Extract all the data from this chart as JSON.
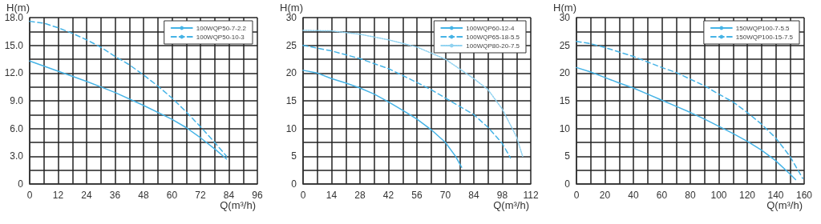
{
  "chart_data": [
    {
      "type": "line",
      "xlabel": "Q(m³/h)",
      "ylabel": "H(m)",
      "xlim": [
        0,
        96
      ],
      "ylim": [
        0,
        18
      ],
      "xticks": [
        0,
        {
          "value": 6,
          "label": null
        },
        12,
        {
          "value": 18,
          "label": null
        },
        24,
        {
          "value": 30,
          "label": null
        },
        36,
        {
          "value": 42,
          "label": null
        },
        48,
        {
          "value": 54,
          "label": null
        },
        60,
        {
          "value": 66,
          "label": null
        },
        72,
        {
          "value": 78,
          "label": null
        },
        84,
        {
          "value": 90,
          "label": null
        },
        96
      ],
      "yticks": [
        0,
        {
          "value": 1.5,
          "label": null
        },
        {
          "value": 3,
          "label": "3.0"
        },
        {
          "value": 4.5,
          "label": null
        },
        {
          "value": 6,
          "label": "6.0"
        },
        {
          "value": 7.5,
          "label": null
        },
        {
          "value": 9,
          "label": "9.0"
        },
        {
          "value": 10.5,
          "label": null
        },
        {
          "value": 12,
          "label": "12.0"
        },
        {
          "value": 13.5,
          "label": null
        },
        {
          "value": 15,
          "label": "15.0"
        },
        {
          "value": 16.5,
          "label": null
        },
        {
          "value": 18,
          "label": "18.0"
        }
      ],
      "grid": true,
      "legend": "top right",
      "marker": "none",
      "series": [
        {
          "name": "100WQP50-7-2.2",
          "color": "#45b3e6",
          "line_style": "solid",
          "x": [
            0,
            12,
            24,
            30,
            36,
            48,
            60,
            66,
            72,
            78,
            83
          ],
          "values": [
            13.3,
            12.2,
            11.1,
            10.5,
            9.9,
            8.5,
            7.0,
            6.1,
            5.0,
            3.8,
            2.7
          ]
        },
        {
          "name": "100WQP50-10-3",
          "color": "#45b3e6",
          "line_style": "dashed",
          "x": [
            0,
            6,
            12,
            18,
            24,
            30,
            36,
            42,
            48,
            54,
            60,
            66,
            72,
            78,
            83
          ],
          "values": [
            17.6,
            17.4,
            16.9,
            16.3,
            15.6,
            14.8,
            13.8,
            12.9,
            11.8,
            10.6,
            9.3,
            7.8,
            6.2,
            4.5,
            3.0
          ]
        }
      ]
    },
    {
      "type": "line",
      "xlabel": "Q(m³/h)",
      "ylabel": "H(m)",
      "xlim": [
        0,
        112
      ],
      "ylim": [
        0,
        30
      ],
      "xticks": [
        0,
        {
          "value": 7,
          "label": null
        },
        14,
        {
          "value": 21,
          "label": null
        },
        28,
        {
          "value": 35,
          "label": null
        },
        42,
        {
          "value": 49,
          "label": null
        },
        56,
        {
          "value": 63,
          "label": null
        },
        70,
        {
          "value": 77,
          "label": null
        },
        84,
        {
          "value": 91,
          "label": null
        },
        98,
        {
          "value": 105,
          "label": null
        },
        112
      ],
      "yticks": [
        0,
        {
          "value": 2.5,
          "label": null
        },
        5,
        {
          "value": 7.5,
          "label": null
        },
        10,
        {
          "value": 12.5,
          "label": null
        },
        15,
        {
          "value": 17.5,
          "label": null
        },
        20,
        {
          "value": 22.5,
          "label": null
        },
        25,
        {
          "value": 27.5,
          "label": null
        },
        30
      ],
      "grid": true,
      "legend": "top right",
      "marker": "none",
      "series": [
        {
          "name": "100WQP60-12-4",
          "color": "#45b3e6",
          "line_style": "solid",
          "x": [
            0,
            7,
            14,
            21,
            28,
            35,
            42,
            49,
            56,
            63,
            70,
            75,
            78
          ],
          "values": [
            20.5,
            20,
            19,
            18.2,
            17.3,
            16.2,
            14.8,
            13.3,
            11.7,
            9.8,
            7.5,
            5,
            3
          ]
        },
        {
          "name": "100WQP65-18-5.5",
          "color": "#45b3e6",
          "line_style": "dashed",
          "x": [
            0,
            14,
            28,
            42,
            56,
            63,
            70,
            77,
            84,
            91,
            98,
            102
          ],
          "values": [
            25,
            24,
            22.6,
            20.8,
            18.3,
            17,
            15.5,
            14,
            12.5,
            10.2,
            7.3,
            4.7
          ]
        },
        {
          "name": "100WQP80-20-7.5",
          "color": "#90d2f0",
          "line_style": "dotted",
          "x": [
            0,
            14,
            28,
            42,
            56,
            70,
            84,
            91,
            98,
            105,
            108
          ],
          "values": [
            27.7,
            27.6,
            27,
            26,
            24.7,
            22.5,
            19,
            17,
            13.5,
            8.5,
            5
          ]
        }
      ]
    },
    {
      "type": "line",
      "xlabel": "Q(m³/h)",
      "ylabel": "H(m)",
      "xlim": [
        0,
        160
      ],
      "ylim": [
        0,
        30
      ],
      "xticks": [
        0,
        {
          "value": 10,
          "label": null
        },
        20,
        {
          "value": 30,
          "label": null
        },
        40,
        {
          "value": 50,
          "label": null
        },
        60,
        {
          "value": 70,
          "label": null
        },
        80,
        {
          "value": 90,
          "label": null
        },
        100,
        {
          "value": 110,
          "label": null
        },
        120,
        {
          "value": 130,
          "label": null
        },
        140,
        {
          "value": 150,
          "label": null
        },
        160
      ],
      "yticks": [
        0,
        {
          "value": 2.5,
          "label": null
        },
        5,
        {
          "value": 7.5,
          "label": null
        },
        10,
        {
          "value": 12.5,
          "label": null
        },
        15,
        {
          "value": 17.5,
          "label": null
        },
        20,
        {
          "value": 22.5,
          "label": null
        },
        25,
        {
          "value": 27.5,
          "label": null
        },
        30
      ],
      "grid": true,
      "legend": "top right",
      "marker": "none",
      "series": [
        {
          "name": "150WQP100-7-5.5",
          "color": "#45b3e6",
          "line_style": "solid",
          "x": [
            0,
            10,
            20,
            30,
            40,
            50,
            60,
            70,
            80,
            90,
            100,
            110,
            120,
            130,
            140,
            150,
            154
          ],
          "values": [
            21,
            20.2,
            19.2,
            18.2,
            17.3,
            16.2,
            15.1,
            14,
            12.9,
            11.7,
            10.4,
            9.1,
            7.7,
            6.1,
            4.2,
            1.8,
            0.8
          ]
        },
        {
          "name": "150WQP100-15-7.5",
          "color": "#45b3e6",
          "line_style": "dashed",
          "x": [
            0,
            10,
            20,
            30,
            40,
            50,
            60,
            70,
            80,
            90,
            100,
            110,
            120,
            130,
            140,
            150,
            159
          ],
          "values": [
            25.7,
            25.3,
            24.6,
            23.8,
            23,
            22,
            21,
            20.1,
            18.9,
            17.7,
            16.2,
            14.8,
            12.9,
            10.8,
            8.3,
            5,
            1
          ]
        }
      ]
    }
  ]
}
